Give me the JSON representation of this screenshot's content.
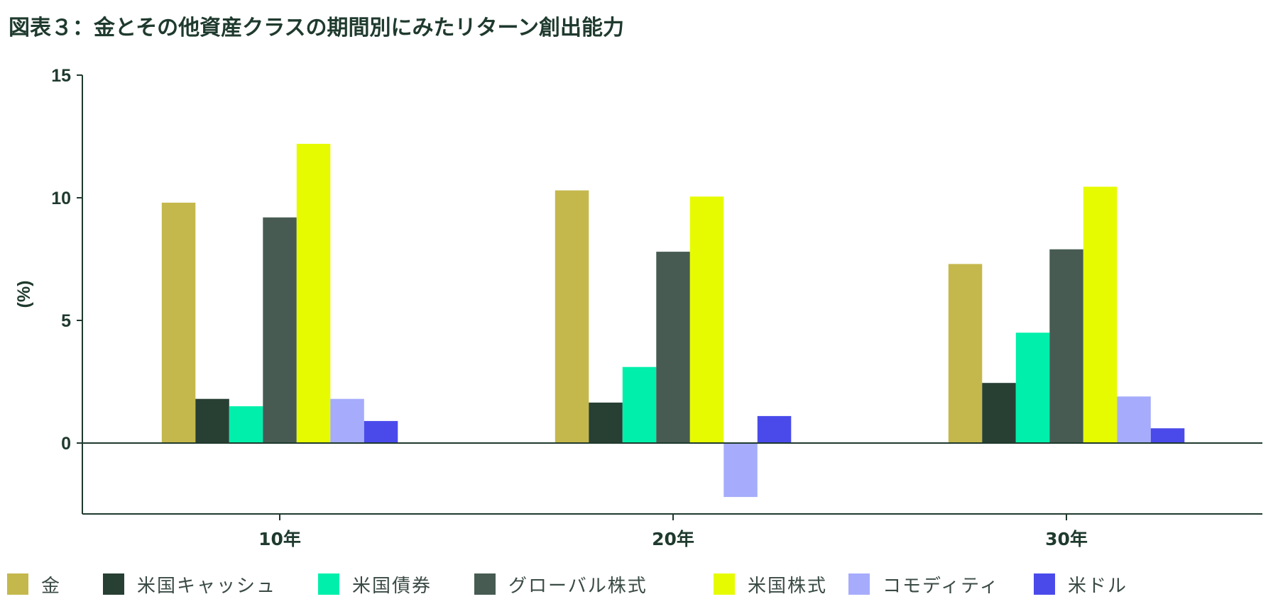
{
  "title": "図表３：金とその他資産クラスの期間別にみたリターン創出能力",
  "chart_data": {
    "type": "bar",
    "title": "図表３：金とその他資産クラスの期間別にみたリターン創出能力",
    "ylabel": "(%)",
    "xlabel": "",
    "ylim": [
      -2.9,
      15
    ],
    "yticks": [
      0,
      5,
      10,
      15
    ],
    "grid": false,
    "legend_position": "bottom",
    "categories": [
      "10年",
      "20年",
      "30年"
    ],
    "series": [
      {
        "name": "金",
        "color": "#c4b84c",
        "values": [
          9.8,
          10.3,
          7.3
        ]
      },
      {
        "name": "米国キャッシュ",
        "color": "#283f34",
        "values": [
          1.8,
          1.65,
          2.45
        ]
      },
      {
        "name": "米国債券",
        "color": "#00efaa",
        "values": [
          1.5,
          3.1,
          4.5
        ]
      },
      {
        "name": "グローバル株式",
        "color": "#475b52",
        "values": [
          9.2,
          7.8,
          7.9
        ]
      },
      {
        "name": "米国株式",
        "color": "#e6fb00",
        "values": [
          12.2,
          10.05,
          10.45
        ]
      },
      {
        "name": "コモディティ",
        "color": "#a6acfb",
        "values": [
          1.8,
          -2.2,
          1.9
        ]
      },
      {
        "name": "米ドル",
        "color": "#4a4aeb",
        "values": [
          0.9,
          1.1,
          0.6
        ]
      }
    ]
  }
}
